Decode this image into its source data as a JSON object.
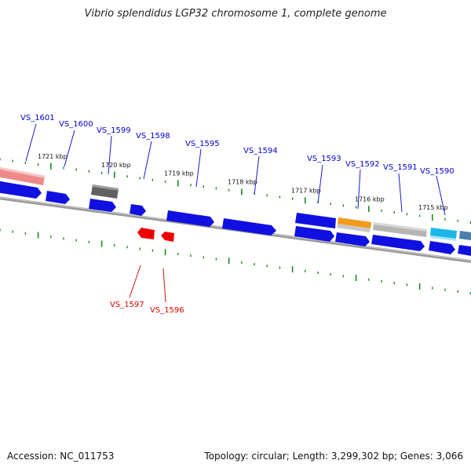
{
  "title": "Vibrio splendidus LGP32 chromosome 1, complete genome",
  "footer": {
    "accession": "Accession: NC_011753",
    "summary": "Topology: circular; Length: 3,299,302 bp; Genes: 3,066"
  },
  "colors": {
    "forward_label": "#0000cc",
    "reverse_label": "#dd0000",
    "gene_blue": "#1010e0",
    "tick": "#1a8a1a",
    "backbone": "#808080"
  },
  "scale_labels": [
    "1721 kbp",
    "1720 kbp",
    "1719 kbp",
    "1718 kbp",
    "1717 kbp",
    "1716 kbp",
    "1715 kbp"
  ],
  "gene_labels_forward": [
    "VS_1601",
    "VS_1600",
    "VS_1599",
    "VS_1598",
    "VS_1595",
    "VS_1594",
    "VS_1593",
    "VS_1592",
    "VS_1591",
    "VS_1590"
  ],
  "gene_labels_reverse": [
    "VS_1597",
    "VS_1596"
  ]
}
